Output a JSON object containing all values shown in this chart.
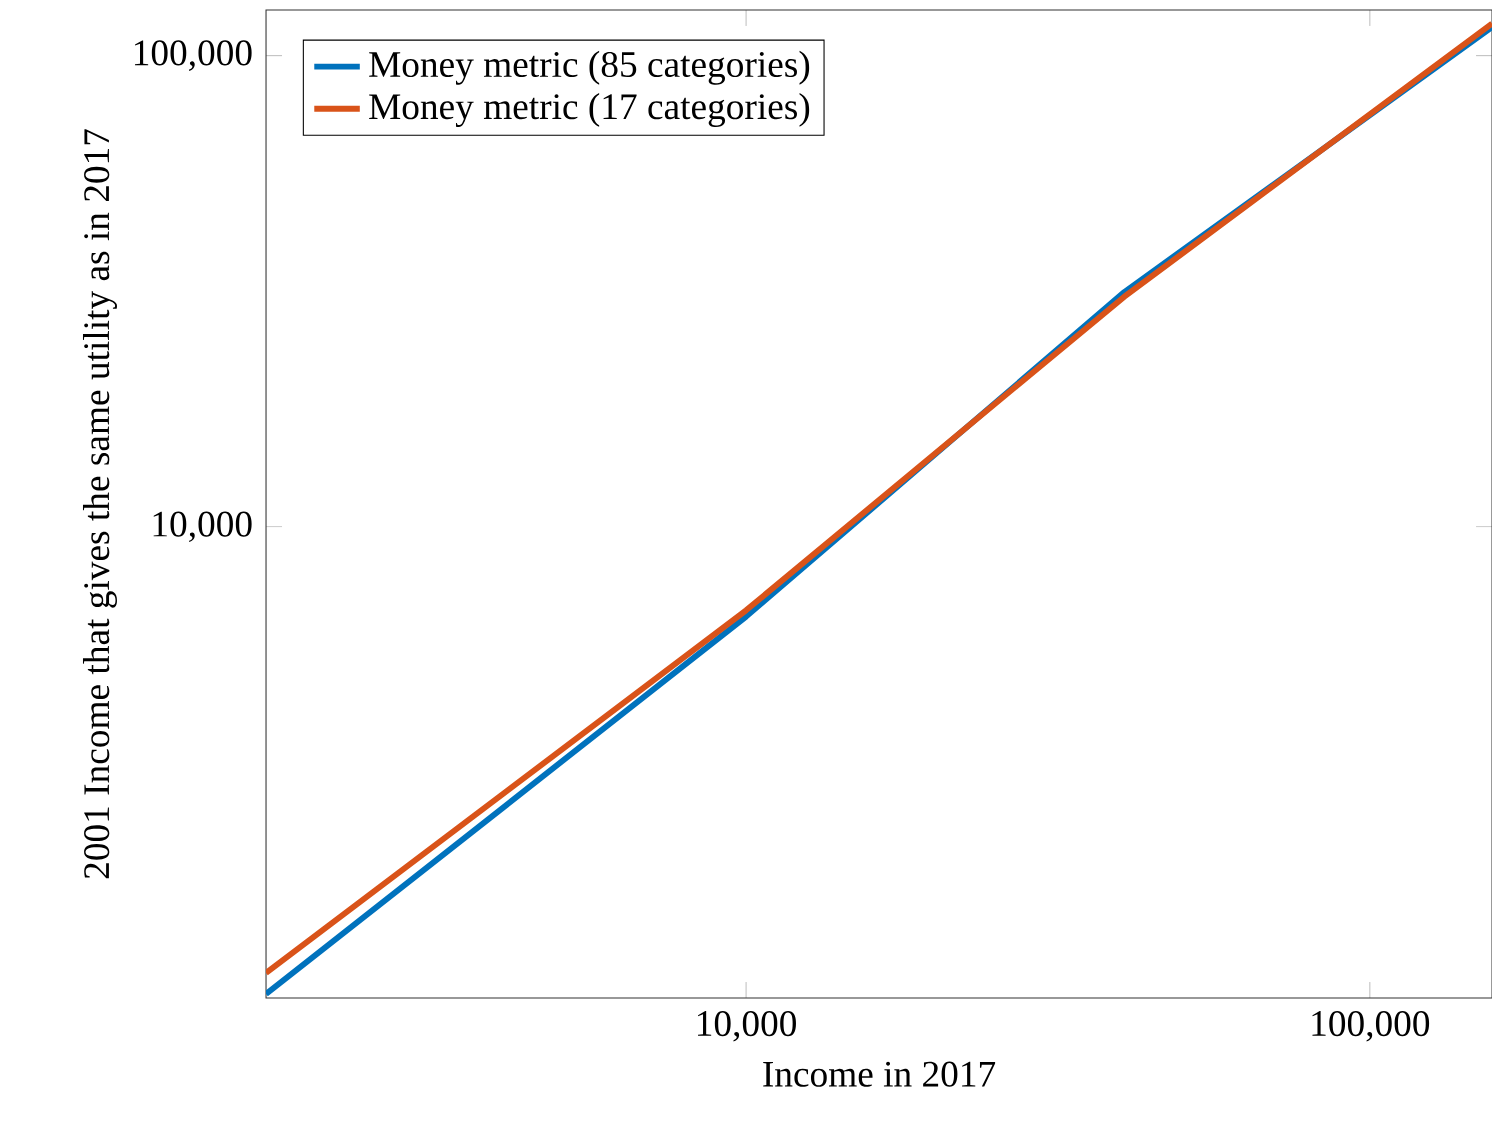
{
  "chart_data": {
    "type": "line",
    "xlabel": "Income in 2017",
    "ylabel": "2001 Income that gives the same utility as in 2017",
    "x": [
      1700,
      10000,
      40400,
      157000
    ],
    "series": [
      {
        "name": "Money metric (85 categories)",
        "color": "#0072bd",
        "values": [
          1020,
          6450,
          31500,
          115000
        ]
      },
      {
        "name": "Money metric (17 categories)",
        "color": "#d95319",
        "values": [
          1130,
          6650,
          30800,
          117000
        ]
      }
    ],
    "log": "xy",
    "xlim": [
      1700,
      157000
    ],
    "ylim": [
      1000,
      125000
    ],
    "xticks": [
      {
        "value": 10000,
        "label": "10,000"
      },
      {
        "value": 100000,
        "label": "100,000"
      }
    ],
    "yticks": [
      {
        "value": 10000,
        "label": "10,000"
      },
      {
        "value": 100000,
        "label": "100,000"
      }
    ],
    "legend": "top left",
    "grid": false,
    "marker": "none",
    "line_style": "solid"
  }
}
